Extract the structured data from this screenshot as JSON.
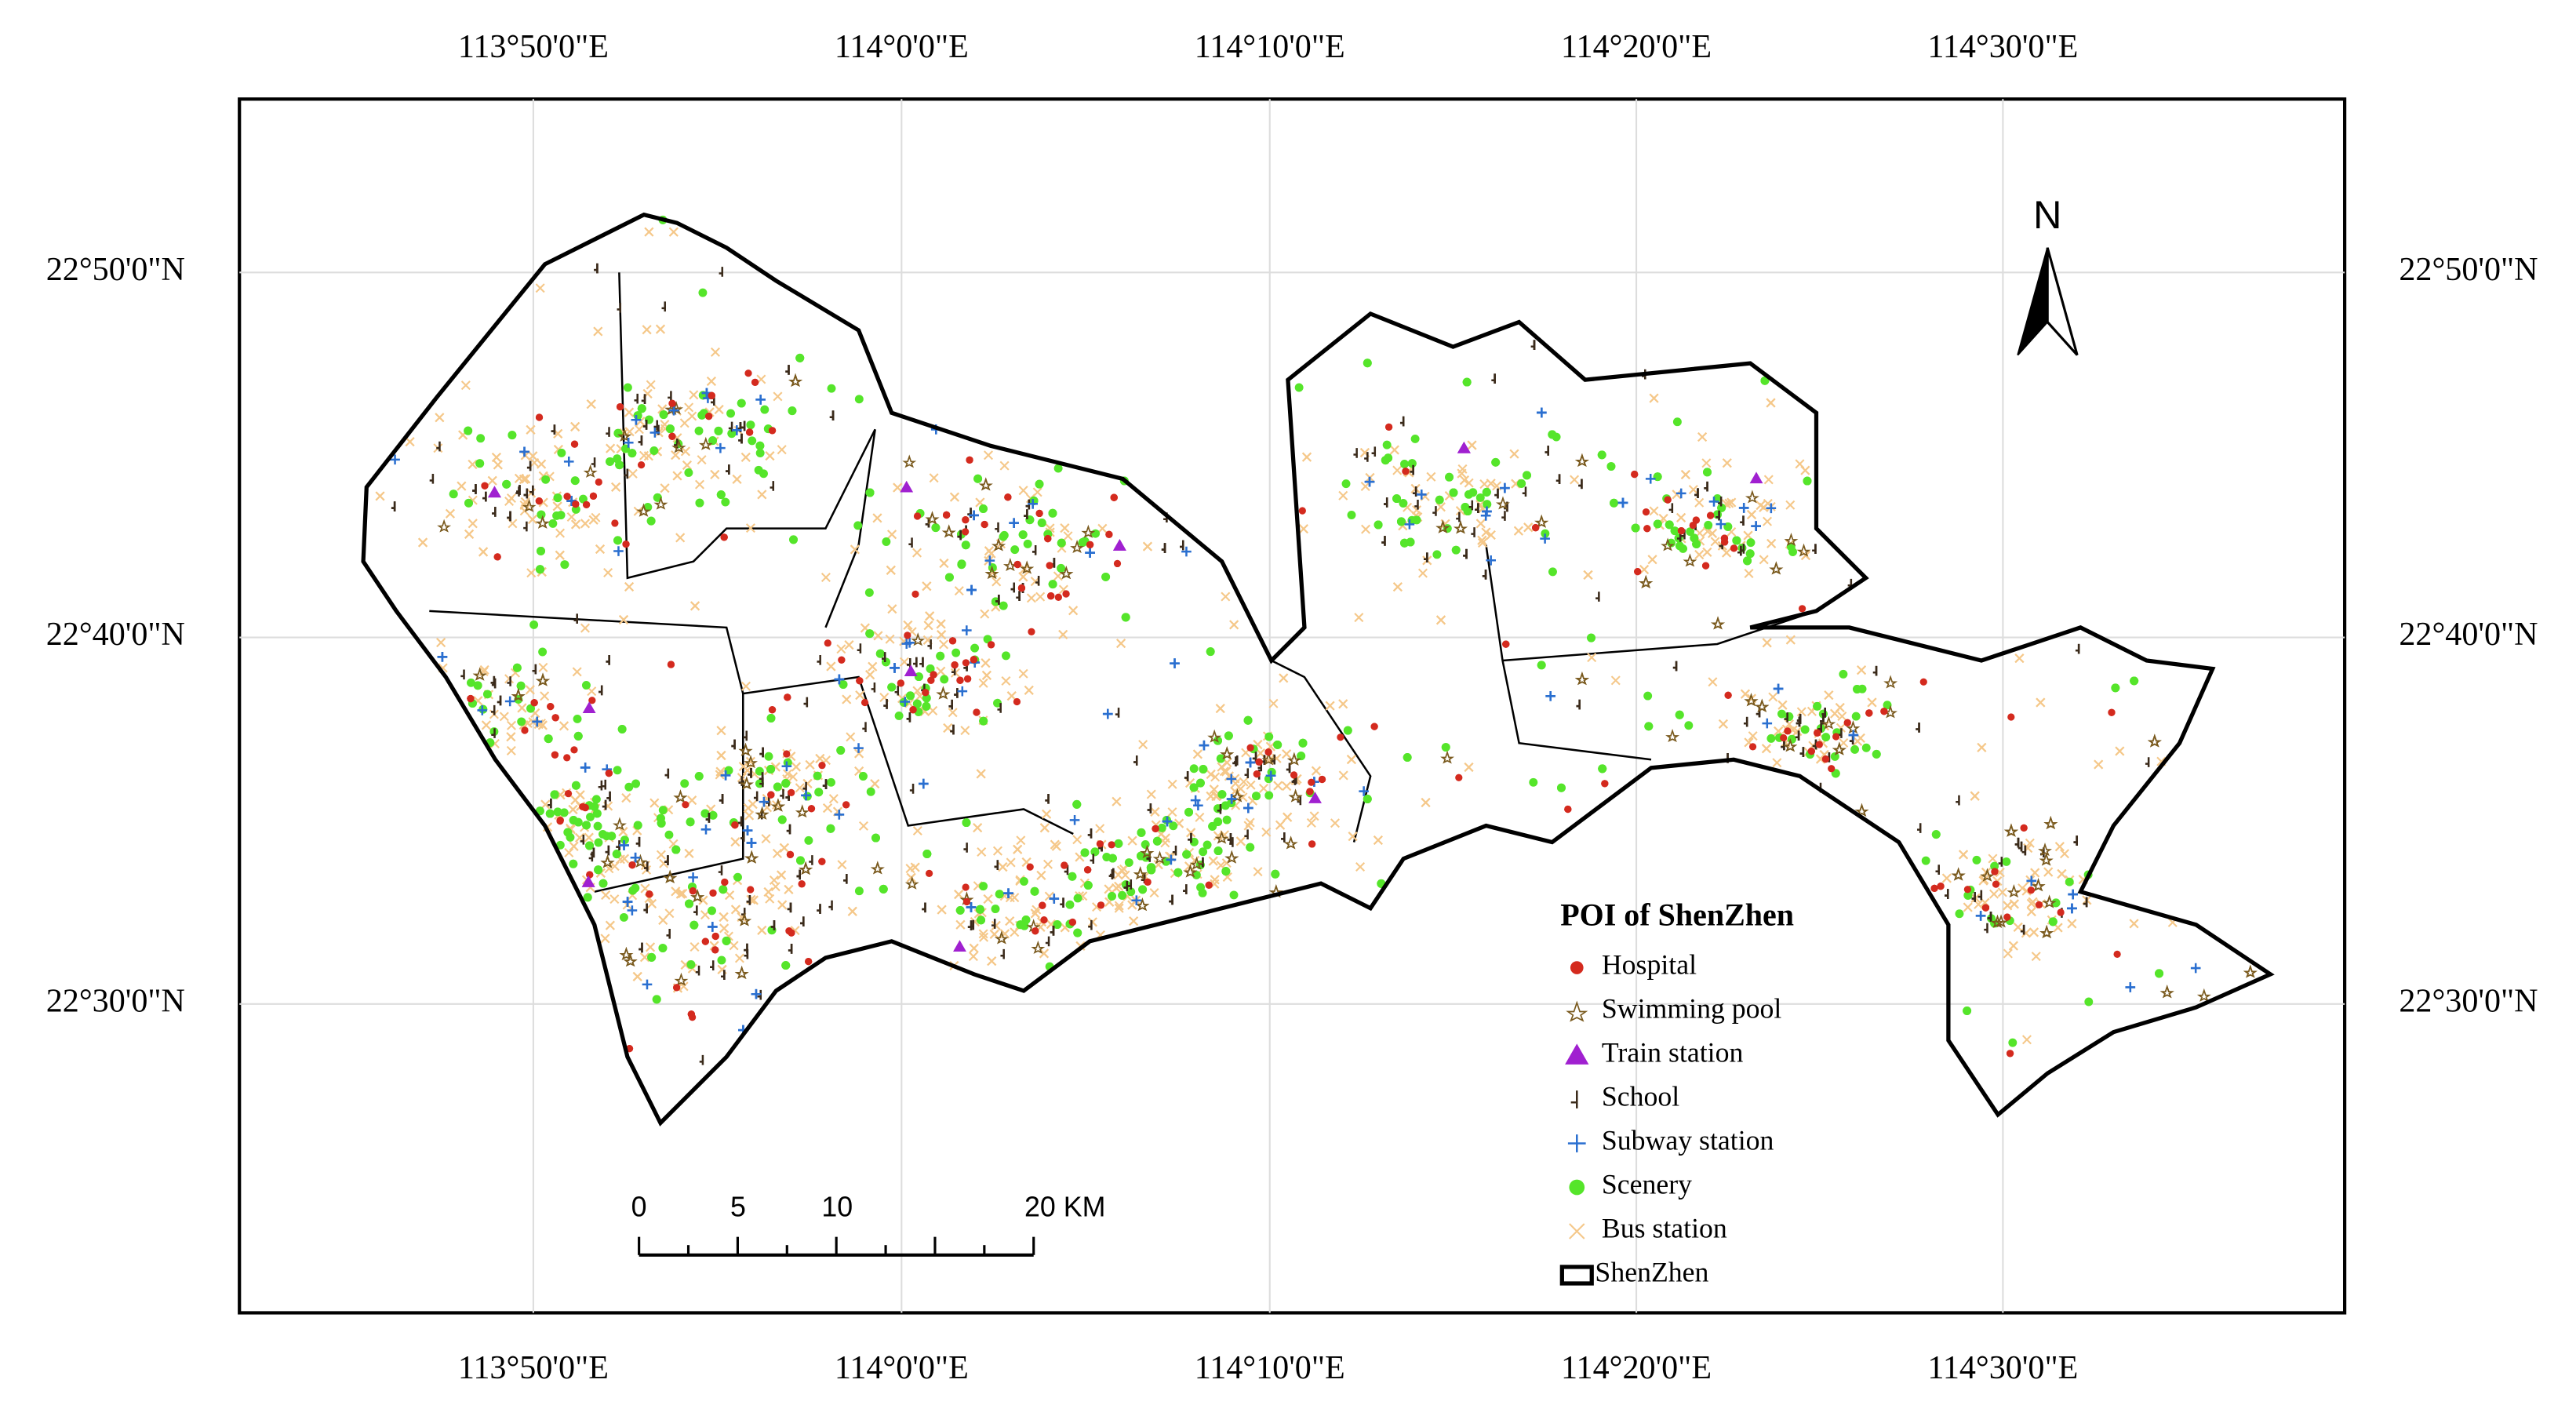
{
  "graticule": {
    "top": [
      "113°50'0\"E",
      "114°0'0\"E",
      "114°10'0\"E",
      "114°20'0\"E",
      "114°30'0\"E"
    ],
    "bottom": [
      "113°50'0\"E",
      "114°0'0\"E",
      "114°10'0\"E",
      "114°20'0\"E",
      "114°30'0\"E"
    ],
    "left": [
      "22°50'0\"N",
      "22°40'0\"N",
      "22°30'0\"N"
    ],
    "right": [
      "22°50'0\"N",
      "22°40'0\"N",
      "22°30'0\"N"
    ]
  },
  "north": "N",
  "legend": {
    "title": "POI of ShenZhen",
    "items": [
      {
        "label": "Hospital",
        "symbol": "dot",
        "color": "#d42a1e"
      },
      {
        "label": "Swimming pool",
        "symbol": "star",
        "color": "#7a5a1e"
      },
      {
        "label": "Train station",
        "symbol": "triangle",
        "color": "#a020d0"
      },
      {
        "label": "School",
        "symbol": "school",
        "color": "#3a2a1a"
      },
      {
        "label": "Subway station",
        "symbol": "plus",
        "color": "#2a6fd0"
      },
      {
        "label": "Scenery",
        "symbol": "scenery",
        "color": "#55e52a"
      },
      {
        "label": "Bus station",
        "symbol": "cross",
        "color": "#f5c88a"
      },
      {
        "label": "ShenZhen",
        "symbol": "boundary",
        "color": "#000000"
      }
    ]
  },
  "scale_bar": {
    "labels": [
      "0",
      "5",
      "10",
      "20 KM"
    ]
  }
}
